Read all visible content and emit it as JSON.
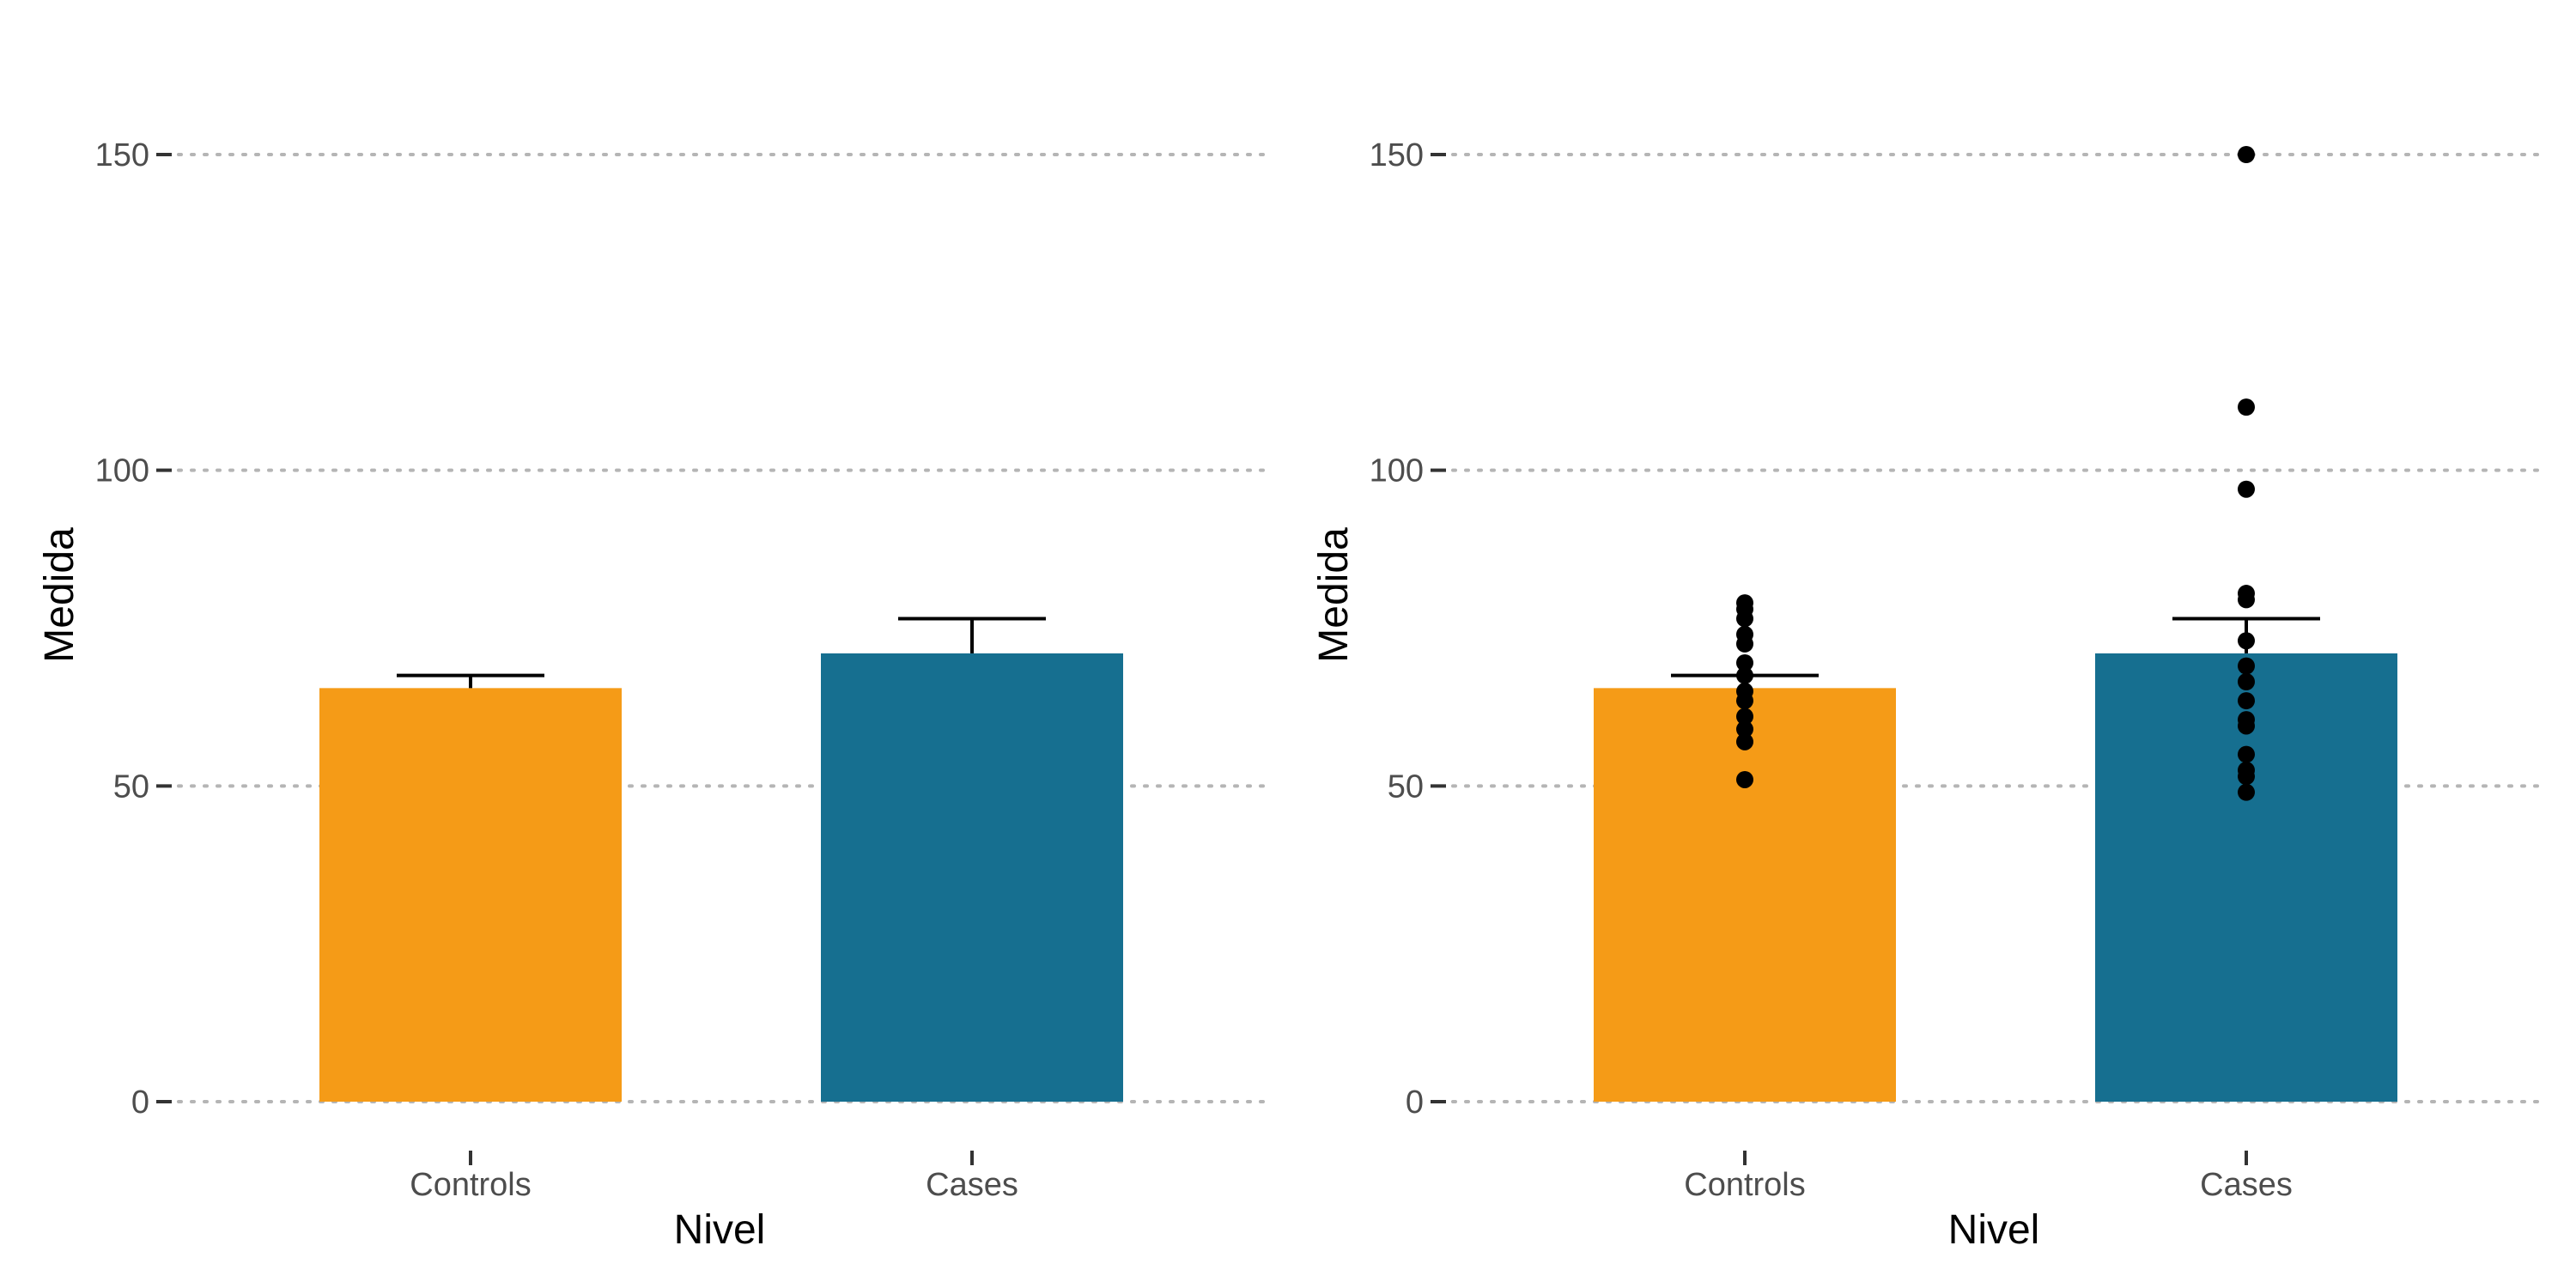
{
  "chart_data": [
    {
      "type": "bar",
      "categories": [
        "Controls",
        "Cases"
      ],
      "values": [
        65.5,
        71
      ],
      "error_upper": [
        67.5,
        76.5
      ],
      "colors": [
        "#F59B17",
        "#166F90"
      ],
      "xlabel": "Nivel",
      "ylabel": "Medida",
      "ylim": [
        0,
        150
      ],
      "yticks": [
        0,
        50,
        100,
        150
      ],
      "grid": "horizontal-dotted",
      "legend": "none",
      "points": null
    },
    {
      "type": "bar",
      "categories": [
        "Controls",
        "Cases"
      ],
      "values": [
        65.5,
        71
      ],
      "error_upper": [
        67.5,
        76.5
      ],
      "colors": [
        "#F59B17",
        "#166F90"
      ],
      "xlabel": "Nivel",
      "ylabel": "Medida",
      "ylim": [
        0,
        150
      ],
      "yticks": [
        0,
        50,
        100,
        150
      ],
      "grid": "horizontal-dotted",
      "legend": "none",
      "points": [
        [
          79,
          78,
          76.5,
          74,
          72.5,
          69.5,
          67.5,
          65,
          63.5,
          61,
          59,
          57,
          51
        ],
        [
          150,
          110,
          97,
          80.5,
          79.5,
          73,
          69,
          66.5,
          63.5,
          60.5,
          59.5,
          55,
          52.5,
          51.5,
          49
        ]
      ]
    }
  ]
}
